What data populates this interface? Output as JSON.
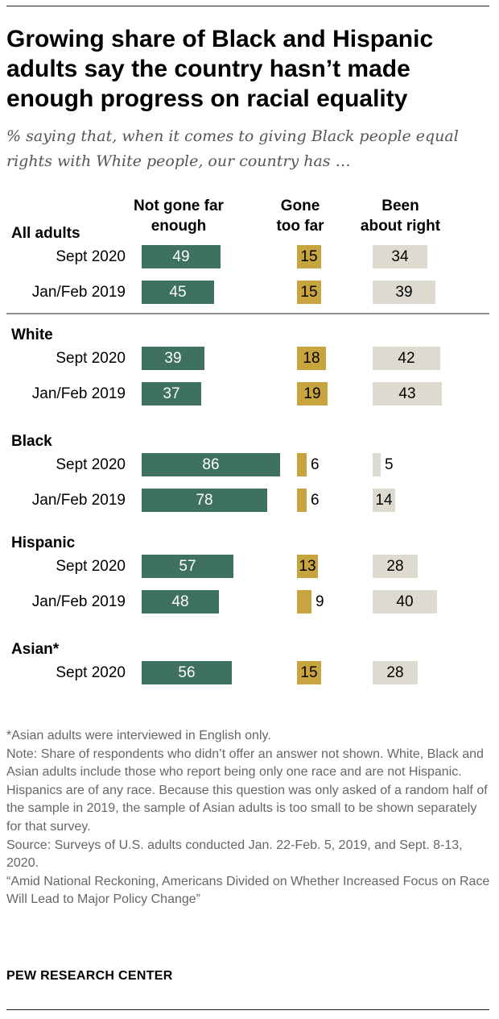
{
  "title": "Growing share of Black and Hispanic adults say the country hasn’t made enough progress on racial equality",
  "subtitle": "% saying that, when it comes to giving Black people equal rights with White people, our country has …",
  "column_headers": {
    "not_far": [
      "Not gone far",
      "enough"
    ],
    "too_far": [
      "Gone",
      "too far"
    ],
    "about_right": [
      "Been",
      "about right"
    ]
  },
  "colors": {
    "not_far": "#3e7162",
    "too_far": "#c8a43f",
    "about_right": "#dddbd0",
    "text_light": "#ffffff",
    "text_dark": "#000000"
  },
  "chart_data": {
    "type": "bar",
    "orientation": "horizontal",
    "stacked": false,
    "series_names": [
      "Not gone far enough",
      "Gone too far",
      "Been about right"
    ],
    "groups": [
      {
        "name": "All adults",
        "rows": [
          {
            "label": "Sept 2020",
            "not_far": 49,
            "too_far": 15,
            "about_right": 34
          },
          {
            "label": "Jan/Feb 2019",
            "not_far": 45,
            "too_far": 15,
            "about_right": 39
          }
        ]
      },
      {
        "name": "White",
        "rows": [
          {
            "label": "Sept 2020",
            "not_far": 39,
            "too_far": 18,
            "about_right": 42
          },
          {
            "label": "Jan/Feb 2019",
            "not_far": 37,
            "too_far": 19,
            "about_right": 43
          }
        ]
      },
      {
        "name": "Black",
        "rows": [
          {
            "label": "Sept 2020",
            "not_far": 86,
            "too_far": 6,
            "about_right": 5
          },
          {
            "label": "Jan/Feb 2019",
            "not_far": 78,
            "too_far": 6,
            "about_right": 14
          }
        ]
      },
      {
        "name": "Hispanic",
        "rows": [
          {
            "label": "Sept 2020",
            "not_far": 57,
            "too_far": 13,
            "about_right": 28
          },
          {
            "label": "Jan/Feb 2019",
            "not_far": 48,
            "too_far": 9,
            "about_right": 40
          }
        ]
      },
      {
        "name": "Asian*",
        "rows": [
          {
            "label": "Sept 2020",
            "not_far": 56,
            "too_far": 15,
            "about_right": 28
          }
        ]
      }
    ]
  },
  "notes": [
    "*Asian adults were interviewed in English only.",
    "Note: Share of respondents who didn’t offer an answer not shown. White, Black and Asian adults include those who report being only one race and are not Hispanic. Hispanics are of any race. Because this question was only asked of a random half of the sample in 2019, the sample of Asian adults is too small to be shown separately for that survey.",
    "Source: Surveys of U.S. adults conducted Jan. 22-Feb. 5, 2019, and Sept. 8-13, 2020.",
    "“Amid National Reckoning, Americans Divided on Whether Increased Focus on Race Will Lead to Major Policy Change”"
  ],
  "source_brand": "PEW RESEARCH CENTER"
}
